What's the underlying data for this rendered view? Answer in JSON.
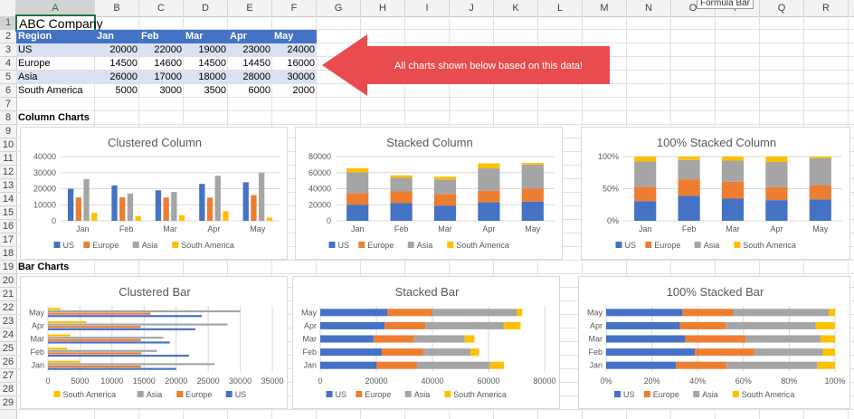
{
  "columns": [
    "A",
    "B",
    "C",
    "D",
    "E",
    "F",
    "G",
    "H",
    "I",
    "J",
    "K",
    "L",
    "M",
    "N",
    "O",
    "P",
    "Q",
    "R"
  ],
  "rows": [
    "1",
    "2",
    "3",
    "4",
    "5",
    "6",
    "7",
    "8",
    "9",
    "10",
    "11",
    "12",
    "13",
    "14",
    "15",
    "16",
    "17",
    "18",
    "19",
    "20",
    "21",
    "22",
    "23",
    "24",
    "25",
    "26",
    "27",
    "28",
    "29"
  ],
  "tooltip": "Formula Bar",
  "table": {
    "title": "ABC Company",
    "headers": [
      "Region",
      "Jan",
      "Feb",
      "Mar",
      "Apr",
      "May"
    ],
    "rows": [
      {
        "region": "US",
        "values": [
          "20000",
          "22000",
          "19000",
          "23000",
          "24000"
        ]
      },
      {
        "region": "Europe",
        "values": [
          "14500",
          "14600",
          "14500",
          "14450",
          "16000"
        ]
      },
      {
        "region": "Asia",
        "values": [
          "26000",
          "17000",
          "18000",
          "28000",
          "30000"
        ]
      },
      {
        "region": "South America",
        "values": [
          "5000",
          "3000",
          "3500",
          "6000",
          "2000"
        ]
      }
    ]
  },
  "callout_text": "All charts shown below based on this data!",
  "section_column": "Column Charts",
  "section_bar": "Bar Charts",
  "colors": {
    "US": "#4472c4",
    "Europe": "#ed7d31",
    "Asia": "#a5a5a5",
    "South America": "#ffc000",
    "callout": "#e84c4f",
    "header": "#4472c4",
    "band": "#d9e1f2"
  },
  "chart_data": [
    {
      "type": "bar",
      "title": "Clustered Column",
      "categories": [
        "Jan",
        "Feb",
        "Mar",
        "Apr",
        "May"
      ],
      "ylim": [
        0,
        40000
      ],
      "yticks": [
        "0",
        "10000",
        "20000",
        "30000",
        "40000"
      ],
      "legend_position": "bottom",
      "series": [
        {
          "name": "US",
          "values": [
            20000,
            22000,
            19000,
            23000,
            24000
          ]
        },
        {
          "name": "Europe",
          "values": [
            14500,
            14600,
            14500,
            14450,
            16000
          ]
        },
        {
          "name": "Asia",
          "values": [
            26000,
            17000,
            18000,
            28000,
            30000
          ]
        },
        {
          "name": "South America",
          "values": [
            5000,
            3000,
            3500,
            6000,
            2000
          ]
        }
      ]
    },
    {
      "type": "bar",
      "title": "Stacked Column",
      "categories": [
        "Jan",
        "Feb",
        "Mar",
        "Apr",
        "May"
      ],
      "ylim": [
        0,
        80000
      ],
      "yticks": [
        "0",
        "20000",
        "40000",
        "60000",
        "80000"
      ],
      "legend_position": "bottom",
      "series": [
        {
          "name": "US",
          "values": [
            20000,
            22000,
            19000,
            23000,
            24000
          ]
        },
        {
          "name": "Europe",
          "values": [
            14500,
            14600,
            14500,
            14450,
            16000
          ]
        },
        {
          "name": "Asia",
          "values": [
            26000,
            17000,
            18000,
            28000,
            30000
          ]
        },
        {
          "name": "South America",
          "values": [
            5000,
            3000,
            3500,
            6000,
            2000
          ]
        }
      ]
    },
    {
      "type": "bar",
      "title": "100% Stacked Column",
      "categories": [
        "Jan",
        "Feb",
        "Mar",
        "Apr",
        "May"
      ],
      "ylim": [
        0,
        100
      ],
      "yticks": [
        "0%",
        "50%",
        "100%"
      ],
      "legend_position": "bottom",
      "series": [
        {
          "name": "US",
          "values": [
            20000,
            22000,
            19000,
            23000,
            24000
          ]
        },
        {
          "name": "Europe",
          "values": [
            14500,
            14600,
            14500,
            14450,
            16000
          ]
        },
        {
          "name": "Asia",
          "values": [
            26000,
            17000,
            18000,
            28000,
            30000
          ]
        },
        {
          "name": "South America",
          "values": [
            5000,
            3000,
            3500,
            6000,
            2000
          ]
        }
      ]
    },
    {
      "type": "bar",
      "title": "Clustered Bar",
      "categories": [
        "Jan",
        "Feb",
        "Mar",
        "Apr",
        "May"
      ],
      "xlim": [
        0,
        35000
      ],
      "xticks": [
        "0",
        "5000",
        "10000",
        "15000",
        "20000",
        "25000",
        "30000",
        "35000"
      ],
      "legend_position": "bottom",
      "series": [
        {
          "name": "US",
          "values": [
            20000,
            22000,
            19000,
            23000,
            24000
          ]
        },
        {
          "name": "Europe",
          "values": [
            14500,
            14600,
            14500,
            14450,
            16000
          ]
        },
        {
          "name": "Asia",
          "values": [
            26000,
            17000,
            18000,
            28000,
            30000
          ]
        },
        {
          "name": "South America",
          "values": [
            5000,
            3000,
            3500,
            6000,
            2000
          ]
        }
      ]
    },
    {
      "type": "bar",
      "title": "Stacked Bar",
      "categories": [
        "Jan",
        "Feb",
        "Mar",
        "Apr",
        "May"
      ],
      "xlim": [
        0,
        80000
      ],
      "xticks": [
        "0",
        "20000",
        "40000",
        "60000",
        "80000"
      ],
      "legend_position": "bottom",
      "series": [
        {
          "name": "US",
          "values": [
            20000,
            22000,
            19000,
            23000,
            24000
          ]
        },
        {
          "name": "Europe",
          "values": [
            14500,
            14600,
            14500,
            14450,
            16000
          ]
        },
        {
          "name": "Asia",
          "values": [
            26000,
            17000,
            18000,
            28000,
            30000
          ]
        },
        {
          "name": "South America",
          "values": [
            5000,
            3000,
            3500,
            6000,
            2000
          ]
        }
      ]
    },
    {
      "type": "bar",
      "title": "100% Stacked Bar",
      "categories": [
        "Jan",
        "Feb",
        "Mar",
        "Apr",
        "May"
      ],
      "xlim": [
        0,
        100
      ],
      "xticks": [
        "0%",
        "20%",
        "40%",
        "60%",
        "80%",
        "100%"
      ],
      "legend_position": "bottom",
      "series": [
        {
          "name": "US",
          "values": [
            20000,
            22000,
            19000,
            23000,
            24000
          ]
        },
        {
          "name": "Europe",
          "values": [
            14500,
            14600,
            14500,
            14450,
            16000
          ]
        },
        {
          "name": "Asia",
          "values": [
            26000,
            17000,
            18000,
            28000,
            30000
          ]
        },
        {
          "name": "South America",
          "values": [
            5000,
            3000,
            3500,
            6000,
            2000
          ]
        }
      ]
    }
  ]
}
